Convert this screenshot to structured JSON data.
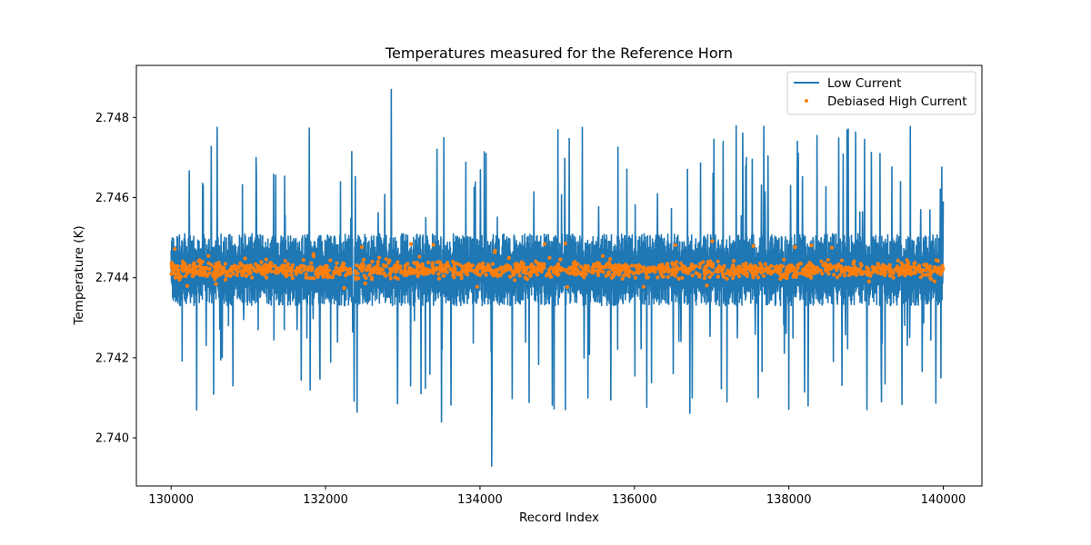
{
  "chart_data": {
    "type": "line",
    "title": "Temperatures measured for the Reference Horn",
    "xlabel": "Record Index",
    "ylabel": "Temperature (K)",
    "xlim": [
      129550,
      140500
    ],
    "ylim": [
      2.7388,
      2.7493
    ],
    "xticks": [
      130000,
      132000,
      134000,
      136000,
      138000,
      140000
    ],
    "xtick_labels": [
      "130000",
      "132000",
      "134000",
      "136000",
      "138000",
      "140000"
    ],
    "yticks": [
      2.74,
      2.742,
      2.744,
      2.746,
      2.748
    ],
    "ytick_labels": [
      "2.740",
      "2.742",
      "2.744",
      "2.746",
      "2.748"
    ],
    "grid": false,
    "legend_position": "top-right",
    "x_range": [
      130000,
      140000
    ],
    "series": [
      {
        "name": "Low Current",
        "kind": "line",
        "color": "#1f77b4",
        "center": 2.7442,
        "band_high": 2.7448,
        "band_low": 2.7436,
        "spikes": [
          {
            "x": 132850,
            "y": 2.7487
          },
          {
            "x": 134150,
            "y": 2.7393
          },
          {
            "x": 134080,
            "y": 2.7471
          },
          {
            "x": 137150,
            "y": 2.7474
          },
          {
            "x": 139180,
            "y": 2.7471
          },
          {
            "x": 131100,
            "y": 2.747
          },
          {
            "x": 133500,
            "y": 2.7469
          },
          {
            "x": 137450,
            "y": 2.747
          },
          {
            "x": 130330,
            "y": 2.7407
          },
          {
            "x": 133500,
            "y": 2.7404
          },
          {
            "x": 139200,
            "y": 2.7409
          },
          {
            "x": 137200,
            "y": 2.7409
          },
          {
            "x": 138250,
            "y": 2.7408
          },
          {
            "x": 136750,
            "y": 2.741
          },
          {
            "x": 135400,
            "y": 2.741
          },
          {
            "x": 131800,
            "y": 2.7412
          },
          {
            "x": 130800,
            "y": 2.7413
          },
          {
            "x": 133100,
            "y": 2.7413
          },
          {
            "x": 140000,
            "y": 2.7459
          },
          {
            "x": 139970,
            "y": 2.7415
          }
        ]
      },
      {
        "name": "Debiased High Current",
        "kind": "scatter",
        "color": "#ff7f0e",
        "center": 2.7442,
        "spread": 0.00025
      }
    ]
  }
}
